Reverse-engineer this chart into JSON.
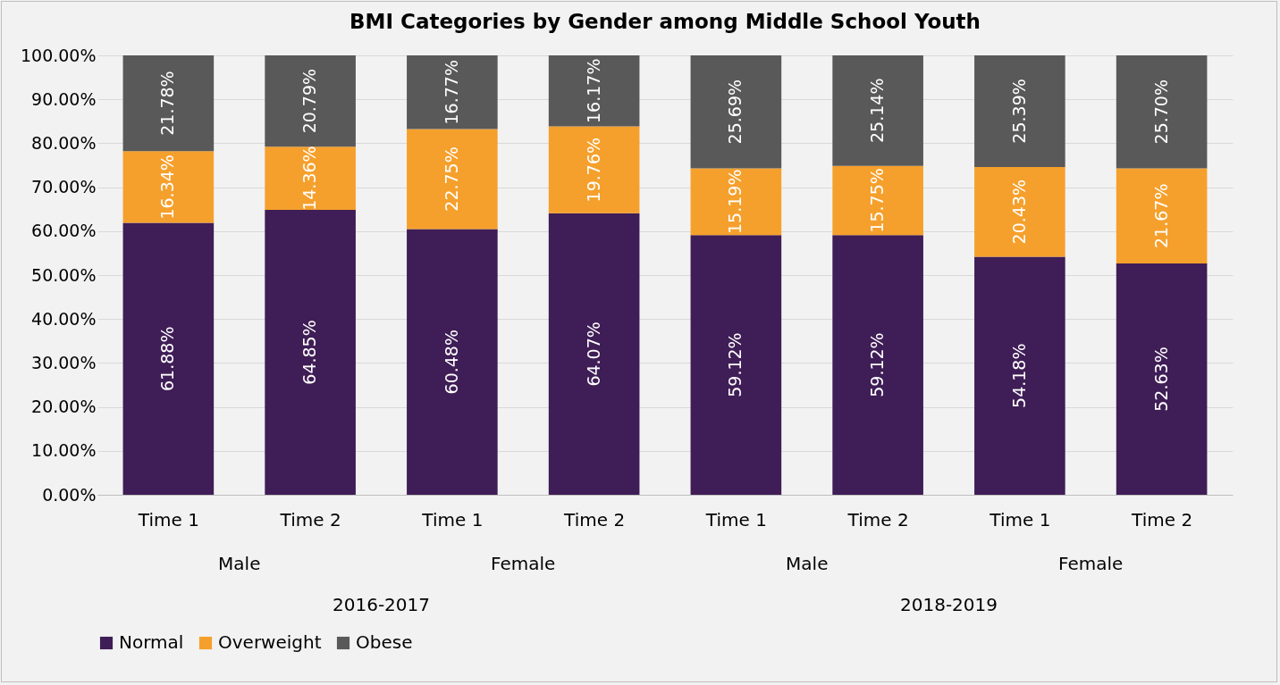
{
  "chart_data": {
    "type": "bar",
    "title": "BMI Categories by Gender among Middle School Youth",
    "stacked": true,
    "categories": [
      "Time 1",
      "Time 2",
      "Time 1",
      "Time 2",
      "Time 1",
      "Time 2",
      "Time 1",
      "Time 2"
    ],
    "series": [
      {
        "name": "Normal",
        "color": "#3f1d56",
        "values": [
          61.88,
          64.85,
          60.48,
          64.07,
          59.12,
          59.12,
          54.18,
          52.63
        ],
        "value_labels": [
          "61.88%",
          "64.85%",
          "60.48%",
          "64.07%",
          "59.12%",
          "59.12%",
          "54.18%",
          "52.63%"
        ]
      },
      {
        "name": "Overweight",
        "color": "#f5a02c",
        "values": [
          16.34,
          14.36,
          22.75,
          19.76,
          15.19,
          15.75,
          20.43,
          21.67
        ],
        "value_labels": [
          "16.34%",
          "14.36%",
          "22.75%",
          "19.76%",
          "15.19%",
          "15.75%",
          "20.43%",
          "21.67%"
        ]
      },
      {
        "name": "Obese",
        "color": "#595959",
        "values": [
          21.78,
          20.79,
          16.77,
          16.17,
          25.69,
          25.14,
          25.39,
          25.7
        ],
        "value_labels": [
          "21.78%",
          "20.79%",
          "16.77%",
          "16.17%",
          "25.69%",
          "25.14%",
          "25.39%",
          "25.70%"
        ]
      }
    ],
    "annotations": [
      "Male",
      "Female",
      "Male",
      "Female",
      "2016-2017",
      "2018-2019"
    ],
    "ylim": [
      0,
      100
    ],
    "yticks": [
      {
        "value": 0,
        "label": "0.00%"
      },
      {
        "value": 10,
        "label": "10.00%"
      },
      {
        "value": 20,
        "label": "20.00%"
      },
      {
        "value": 30,
        "label": "30.00%"
      },
      {
        "value": 40,
        "label": "40.00%"
      },
      {
        "value": 50,
        "label": "50.00%"
      },
      {
        "value": 60,
        "label": "60.00%"
      },
      {
        "value": 70,
        "label": "70.00%"
      },
      {
        "value": 80,
        "label": "80.00%"
      },
      {
        "value": 90,
        "label": "90.00%"
      },
      {
        "value": 100,
        "label": "100.00%"
      }
    ],
    "grid": "y",
    "legend": "bottom"
  }
}
